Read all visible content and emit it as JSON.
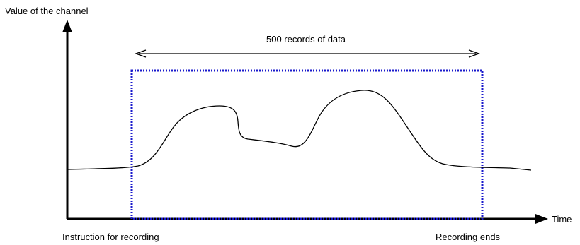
{
  "labels": {
    "y_axis": "Value of the channel",
    "x_axis": "Time",
    "span": "500 records of data",
    "start": "Instruction for recording",
    "end": "Recording ends"
  },
  "colors": {
    "axis": "#000000",
    "signal": "#000000",
    "window_border": "#1a1acc"
  }
}
